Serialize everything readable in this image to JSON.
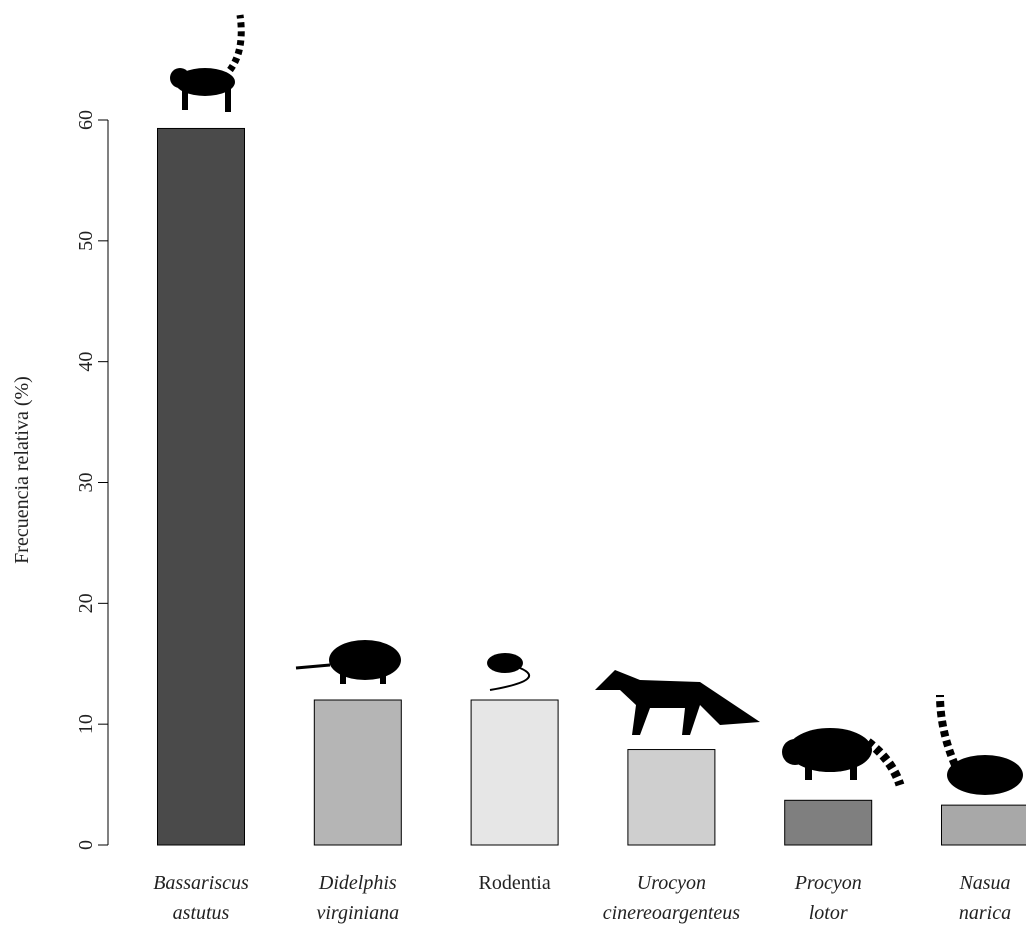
{
  "chart_data": {
    "type": "bar",
    "y_label": "Frecuencia relativa (%)",
    "categories": [
      [
        "Bassariscus",
        "astutus"
      ],
      [
        "Didelphis",
        "virginiana"
      ],
      [
        "Rodentia"
      ],
      [
        "Urocyon",
        "cinereoargenteus"
      ],
      [
        "Procyon",
        "lotor"
      ],
      [
        "Nasua",
        "narica"
      ]
    ],
    "label_italic": [
      true,
      true,
      false,
      true,
      true,
      true
    ],
    "label_colors": [
      "#000000",
      "#000000",
      "#000000",
      "#777777",
      "#000000",
      "#000000"
    ],
    "values": [
      59.3,
      12.0,
      12.0,
      7.9,
      3.7,
      3.3
    ],
    "colors": [
      "#4a4a4a",
      "#b5b5b5",
      "#e6e6e6",
      "#cfcfcf",
      "#7f7f7f",
      "#a8a8a8"
    ],
    "ylim": [
      0,
      60
    ],
    "yticks": [
      0,
      10,
      20,
      30,
      40,
      50,
      60
    ]
  }
}
